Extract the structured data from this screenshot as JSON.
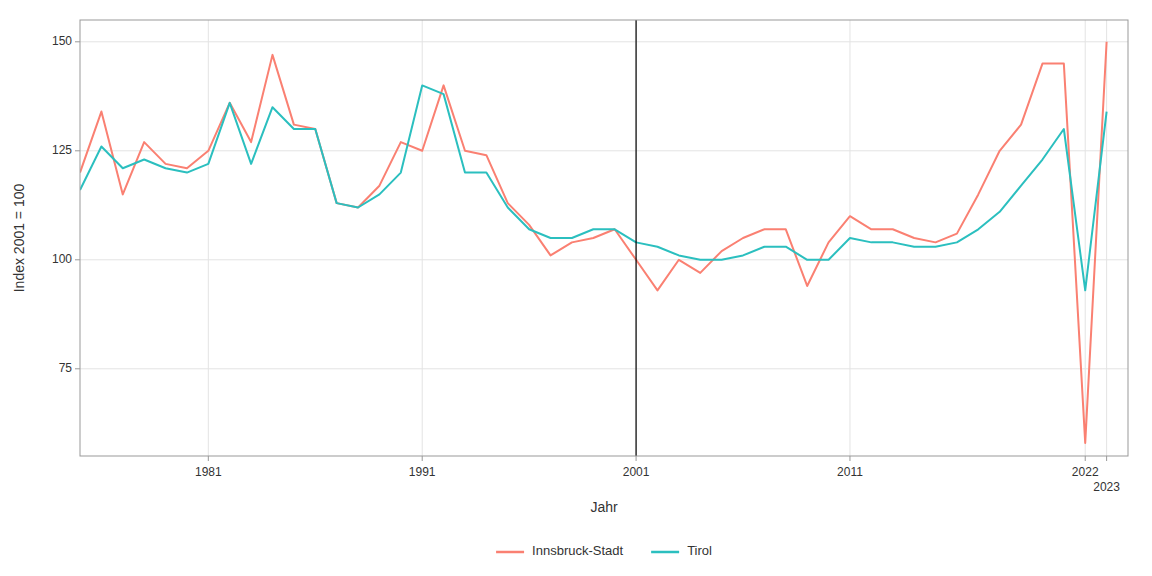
{
  "chart_data": {
    "type": "line",
    "xlabel": "Jahr",
    "ylabel": "Index 2001 = 100",
    "x": [
      1975,
      1976,
      1977,
      1978,
      1979,
      1980,
      1981,
      1982,
      1983,
      1984,
      1985,
      1986,
      1987,
      1988,
      1989,
      1990,
      1991,
      1992,
      1993,
      1994,
      1995,
      1996,
      1997,
      1998,
      1999,
      2000,
      2001,
      2002,
      2003,
      2004,
      2005,
      2006,
      2007,
      2008,
      2009,
      2010,
      2011,
      2012,
      2013,
      2014,
      2015,
      2016,
      2017,
      2018,
      2019,
      2020,
      2021,
      2022,
      2023
    ],
    "series": [
      {
        "name": "Innsbruck-Stadt",
        "color": "#FA8072",
        "values": [
          120,
          134,
          115,
          127,
          122,
          121,
          125,
          136,
          127,
          147,
          131,
          130,
          113,
          112,
          117,
          127,
          125,
          140,
          125,
          124,
          113,
          108,
          101,
          104,
          105,
          107,
          100,
          93,
          100,
          97,
          102,
          105,
          107,
          107,
          94,
          104,
          110,
          107,
          107,
          105,
          104,
          106,
          115,
          125,
          131,
          145,
          145,
          58,
          150
        ]
      },
      {
        "name": "Tirol",
        "color": "#2BBFBF",
        "values": [
          116,
          126,
          121,
          123,
          121,
          120,
          122,
          136,
          122,
          135,
          130,
          130,
          113,
          112,
          115,
          120,
          140,
          138,
          120,
          120,
          112,
          107,
          105,
          105,
          107,
          107,
          104,
          103,
          101,
          100,
          100,
          101,
          103,
          103,
          100,
          100,
          105,
          104,
          104,
          103,
          103,
          104,
          107,
          111,
          117,
          123,
          130,
          93,
          134
        ]
      }
    ],
    "vlines": [
      2001
    ],
    "xlim": [
      1975.0,
      2024.0
    ],
    "xticks": [
      1981,
      1991,
      2001,
      2011,
      2022,
      2023
    ],
    "ylim": [
      55,
      155
    ],
    "yticks": [
      75,
      100,
      125,
      150
    ],
    "grid": true,
    "legend": "bottom"
  }
}
